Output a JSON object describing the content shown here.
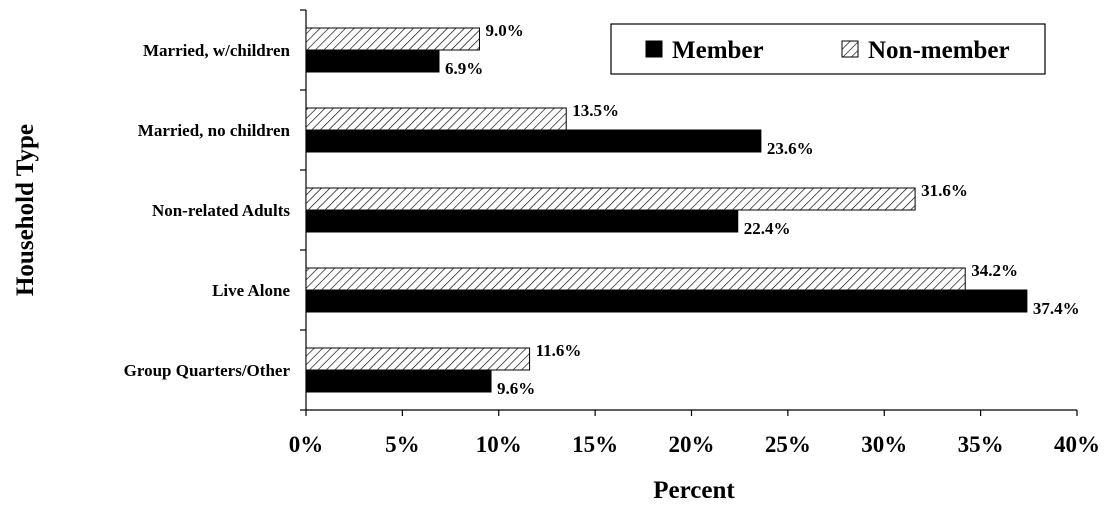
{
  "chart_data": {
    "type": "bar",
    "orientation": "horizontal",
    "title": "",
    "xlabel": "Percent",
    "ylabel": "Household Type",
    "xlim": [
      0,
      40
    ],
    "x_ticks": [
      "0%",
      "5%",
      "10%",
      "15%",
      "20%",
      "25%",
      "30%",
      "35%",
      "40%"
    ],
    "categories": [
      "Married, w/children",
      "Married, no children",
      "Non-related Adults",
      "Live Alone",
      "Group Quarters/Other"
    ],
    "series": [
      {
        "name": "Member",
        "values": [
          6.9,
          23.6,
          22.4,
          37.4,
          9.6
        ],
        "labels": [
          "6.9%",
          "23.6%",
          "22.4%",
          "37.4%",
          "9.6%"
        ],
        "fill": "solid",
        "color": "#000000"
      },
      {
        "name": "Non-member",
        "values": [
          9.0,
          13.5,
          31.6,
          34.2,
          11.6
        ],
        "labels": [
          "9.0%",
          "13.5%",
          "31.6%",
          "34.2%",
          "11.6%"
        ],
        "fill": "diagonal-hatch",
        "color": "#000000"
      }
    ],
    "grid": false,
    "legend": {
      "position": "top-right",
      "entries": [
        "Member",
        "Non-member"
      ]
    }
  }
}
